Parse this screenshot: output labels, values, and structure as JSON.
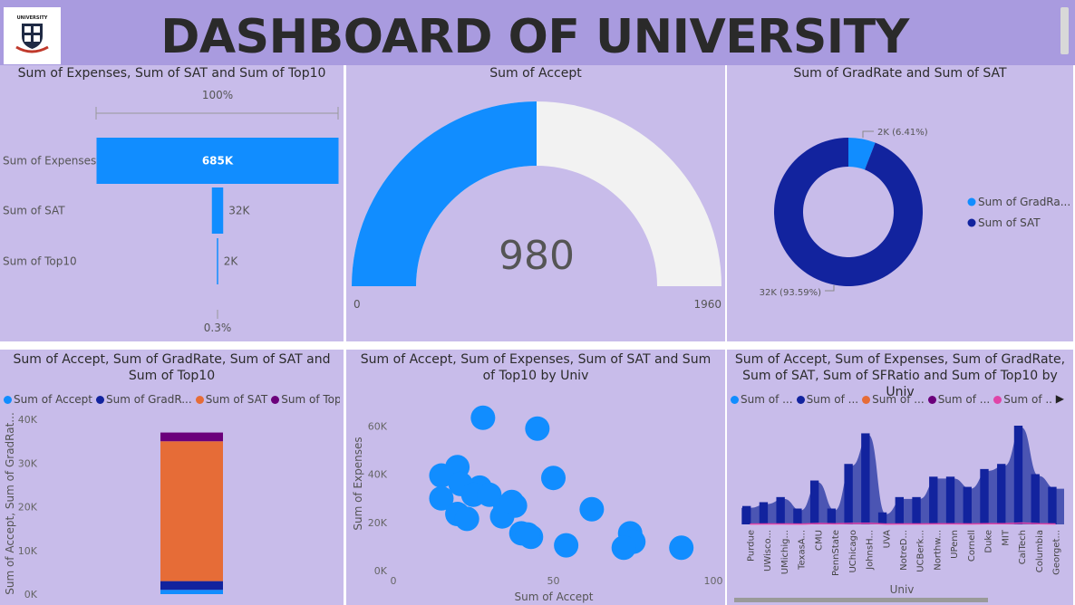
{
  "header": {
    "title": "DASHBOARD OF UNIVERSITY",
    "logo_text": "UNIVERSITY"
  },
  "colors": {
    "header_bg": "#a99bdf",
    "panel_bg": "#c8bcea",
    "blue": "#118dff",
    "navy": "#12239e",
    "orange": "#e66c37",
    "purple": "#6b007b",
    "pink": "#e044a7",
    "gauge_bg": "#f2f2f2"
  },
  "panels": {
    "funnel": {
      "title": "Sum of Expenses, Sum of SAT and Sum of Top10",
      "top_pct": "100%",
      "bottom_pct": "0.3%"
    },
    "gauge": {
      "title": "Sum of Accept",
      "value": "980",
      "min": "0",
      "max": "1960"
    },
    "donut": {
      "title": "Sum of GradRate and Sum of SAT"
    },
    "stacked": {
      "title": "Sum of Accept, Sum of GradRate, Sum of SAT and Sum of Top10",
      "ylabel": "Sum of Accept, Sum of GradRat..."
    },
    "scatter": {
      "title": "Sum of Accept, Sum of Expenses, Sum of SAT and Sum of Top10 by Univ",
      "xlabel": "Sum of Accept",
      "ylabel": "Sum of Expenses"
    },
    "area": {
      "title": "Sum of Accept, Sum of Expenses, Sum of GradRate, Sum of SAT, Sum of SFRatio and Sum of Top10 by Univ",
      "xlabel": "Univ"
    }
  },
  "chart_data": [
    {
      "type": "bar",
      "title": "Sum of Expenses, Sum of SAT and Sum of Top10",
      "categories": [
        "Sum of Expenses",
        "Sum of SAT",
        "Sum of Top10"
      ],
      "values": [
        685000,
        32000,
        2000
      ],
      "labels": [
        "685K",
        "32K",
        "2K"
      ]
    },
    {
      "type": "gauge",
      "title": "Sum of Accept",
      "value": 980,
      "min": 0,
      "max": 1960
    },
    {
      "type": "pie",
      "title": "Sum of GradRate and Sum of SAT",
      "categories": [
        "Sum of GradRa...",
        "Sum of SAT"
      ],
      "values": [
        2000,
        32000
      ],
      "labels": [
        "2K (6.41%)",
        "32K (93.59%)"
      ],
      "legend_position": "right"
    },
    {
      "type": "bar",
      "title": "Sum of Accept, Sum of GradRate, Sum of SAT and Sum of Top10",
      "stacked": true,
      "legend": [
        "Sum of Accept",
        "Sum of GradR...",
        "Sum of SAT",
        "Sum of Top10"
      ],
      "series": [
        {
          "name": "Sum of Accept",
          "values": [
            980
          ]
        },
        {
          "name": "Sum of GradRate",
          "values": [
            2000
          ]
        },
        {
          "name": "Sum of SAT",
          "values": [
            32000
          ]
        },
        {
          "name": "Sum of Top10",
          "values": [
            2000
          ]
        }
      ],
      "ylim": [
        0,
        40000
      ],
      "yticks": [
        "0K",
        "10K",
        "20K",
        "30K",
        "40K"
      ],
      "ylabel": "Sum of Accept, Sum of GradRat..."
    },
    {
      "type": "scatter",
      "title": "Sum of Accept, Sum of Expenses, Sum of SAT and Sum of Top10 by Univ",
      "xlabel": "Sum of Accept",
      "ylabel": "Sum of Expenses",
      "xlim": [
        0,
        100
      ],
      "ylim": [
        0,
        70000
      ],
      "xticks": [
        "0",
        "50",
        "100"
      ],
      "yticks": [
        "0K",
        "20K",
        "40K",
        "60K"
      ],
      "points": [
        [
          28,
          63500
        ],
        [
          45,
          59000
        ],
        [
          20,
          43000
        ],
        [
          27,
          34500
        ],
        [
          50,
          38500
        ],
        [
          15,
          39500
        ],
        [
          21,
          36000
        ],
        [
          25,
          31500
        ],
        [
          15,
          30000
        ],
        [
          30,
          31500
        ],
        [
          38,
          27000
        ],
        [
          35,
          26500
        ],
        [
          20,
          23500
        ],
        [
          23,
          21500
        ],
        [
          34,
          22500
        ],
        [
          62,
          25500
        ],
        [
          40,
          15500
        ],
        [
          43,
          14000
        ],
        [
          74,
          15500
        ],
        [
          75,
          12000
        ],
        [
          54,
          10500
        ],
        [
          72,
          9500
        ],
        [
          90,
          9500
        ],
        [
          42,
          15000
        ],
        [
          37,
          28500
        ]
      ]
    },
    {
      "type": "area",
      "title": "Sum of Accept, Sum of Expenses, Sum of GradRate, Sum of SAT, Sum of SFRatio and Sum of Top10 by Univ",
      "xlabel": "Univ",
      "legend": [
        "Sum of ...",
        "Sum of ...",
        "Sum of ...",
        "Sum of ...",
        "Sum of ..."
      ],
      "categories": [
        "Purdue",
        "UWisco...",
        "UMichig...",
        "TexasA...",
        "CMU",
        "PennState",
        "UChicago",
        "JohnsH...",
        "UVA",
        "NotreD...",
        "UCBerk...",
        "Northw...",
        "UPenn",
        "Cornell",
        "Duke",
        "MIT",
        "CalTech",
        "Columbia",
        "Georget..."
      ],
      "series": [
        {
          "name": "Sum of Expenses",
          "values": [
            13000,
            16000,
            20000,
            11000,
            33000,
            11000,
            46000,
            70000,
            8000,
            20000,
            20000,
            36000,
            36000,
            28000,
            42000,
            46000,
            76000,
            38000,
            28000
          ]
        },
        {
          "name": "Sum of Top10",
          "values": [
            26,
            30,
            35,
            22,
            60,
            36,
            70,
            80,
            25,
            30,
            28,
            42,
            43,
            35,
            46,
            48,
            95,
            48,
            28
          ]
        }
      ]
    }
  ]
}
